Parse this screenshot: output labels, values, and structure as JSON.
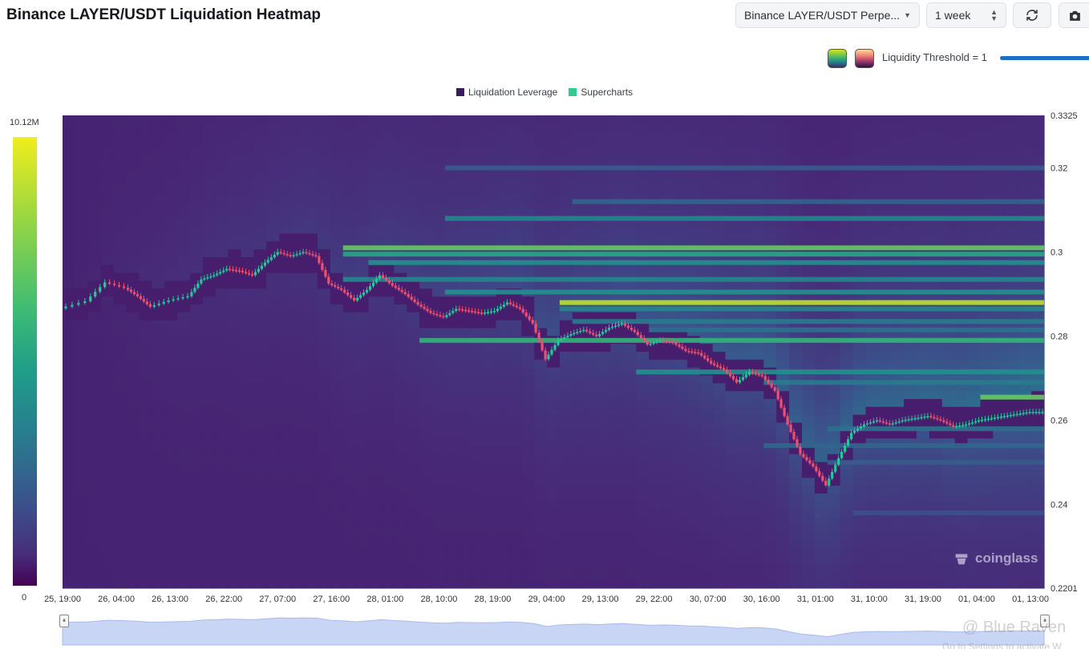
{
  "header": {
    "title": "Binance LAYER/USDT Liquidation Heatmap",
    "pair_select": "Binance LAYER/USDT Perpe...",
    "period_select": "1 week"
  },
  "controls": {
    "threshold_label": "Liquidity Threshold = 1",
    "threshold_value": 1,
    "refresh_icon": "refresh-icon",
    "camera_icon": "camera-icon"
  },
  "colorbar": {
    "max_label": "10.12M",
    "min_label": "0"
  },
  "brand": {
    "text": "coinglass"
  },
  "watermark": {
    "text": "@ Blue Raven",
    "sub": "Go to Settings to activate W"
  },
  "chart_data": {
    "type": "heatmap",
    "legend": [
      {
        "name": "Liquidation Leverage",
        "color": "#3b1b5e"
      },
      {
        "name": "Supercharts",
        "color": "#2ecc8f"
      }
    ],
    "x_ticks": [
      "25, 19:00",
      "26, 04:00",
      "26, 13:00",
      "26, 22:00",
      "27, 07:00",
      "27, 16:00",
      "28, 01:00",
      "28, 10:00",
      "28, 19:00",
      "29, 04:00",
      "29, 13:00",
      "29, 22:00",
      "30, 07:00",
      "30, 16:00",
      "31, 01:00",
      "31, 10:00",
      "31, 19:00",
      "01, 04:00",
      "01, 13:00"
    ],
    "y_ticks": [
      "0.3325",
      "0.32",
      "0.3",
      "0.28",
      "0.26",
      "0.24",
      "0.2201"
    ],
    "ylim": [
      0.2201,
      0.3325
    ],
    "colorscale_max": 10120000,
    "price_path": [
      [
        0,
        0.2866
      ],
      [
        2,
        0.2883
      ],
      [
        3.5,
        0.2928
      ],
      [
        5,
        0.2915
      ],
      [
        6,
        0.2895
      ],
      [
        7,
        0.287
      ],
      [
        8.5,
        0.2885
      ],
      [
        10,
        0.2895
      ],
      [
        11,
        0.2935
      ],
      [
        12,
        0.2945
      ],
      [
        13,
        0.296
      ],
      [
        14,
        0.2955
      ],
      [
        15,
        0.2945
      ],
      [
        16,
        0.2975
      ],
      [
        17,
        0.3
      ],
      [
        18,
        0.299
      ],
      [
        19,
        0.3
      ],
      [
        20,
        0.299
      ],
      [
        21,
        0.2925
      ],
      [
        22,
        0.291
      ],
      [
        23,
        0.2885
      ],
      [
        24,
        0.291
      ],
      [
        25,
        0.2945
      ],
      [
        26,
        0.292
      ],
      [
        27,
        0.29
      ],
      [
        28,
        0.2875
      ],
      [
        29,
        0.2855
      ],
      [
        30,
        0.2845
      ],
      [
        31,
        0.2865
      ],
      [
        32,
        0.286
      ],
      [
        33,
        0.2855
      ],
      [
        34,
        0.286
      ],
      [
        35,
        0.288
      ],
      [
        36,
        0.2865
      ],
      [
        37,
        0.283
      ],
      [
        38,
        0.2745
      ],
      [
        39,
        0.279
      ],
      [
        40,
        0.2805
      ],
      [
        41,
        0.2815
      ],
      [
        42,
        0.28
      ],
      [
        43,
        0.282
      ],
      [
        44,
        0.283
      ],
      [
        45,
        0.281
      ],
      [
        46,
        0.278
      ],
      [
        47,
        0.279
      ],
      [
        48,
        0.2785
      ],
      [
        49,
        0.2765
      ],
      [
        50,
        0.276
      ],
      [
        51,
        0.2735
      ],
      [
        52,
        0.272
      ],
      [
        53,
        0.269
      ],
      [
        54,
        0.2715
      ],
      [
        55,
        0.2705
      ],
      [
        56,
        0.267
      ],
      [
        57,
        0.259
      ],
      [
        58,
        0.252
      ],
      [
        59,
        0.249
      ],
      [
        60,
        0.2445
      ],
      [
        61,
        0.251
      ],
      [
        62,
        0.257
      ],
      [
        63,
        0.259
      ],
      [
        64,
        0.26
      ],
      [
        65,
        0.259
      ],
      [
        66,
        0.26
      ],
      [
        67,
        0.2605
      ],
      [
        68,
        0.261
      ],
      [
        69,
        0.26
      ],
      [
        70,
        0.2585
      ],
      [
        71,
        0.259
      ],
      [
        72,
        0.26
      ],
      [
        73,
        0.2605
      ],
      [
        74,
        0.261
      ],
      [
        75,
        0.2615
      ],
      [
        76,
        0.262
      ],
      [
        77,
        0.262
      ]
    ],
    "liquidation_levels": [
      {
        "price": 0.301,
        "intensity": 0.85,
        "from": 22
      },
      {
        "price": 0.2995,
        "intensity": 0.7,
        "from": 22
      },
      {
        "price": 0.2975,
        "intensity": 0.6,
        "from": 24
      },
      {
        "price": 0.2935,
        "intensity": 0.55,
        "from": 22
      },
      {
        "price": 0.2905,
        "intensity": 0.6,
        "from": 30
      },
      {
        "price": 0.288,
        "intensity": 0.95,
        "from": 39
      },
      {
        "price": 0.2865,
        "intensity": 0.55,
        "from": 39
      },
      {
        "price": 0.2835,
        "intensity": 0.5,
        "from": 40
      },
      {
        "price": 0.2815,
        "intensity": 0.45,
        "from": 46
      },
      {
        "price": 0.279,
        "intensity": 0.75,
        "from": 28
      },
      {
        "price": 0.2715,
        "intensity": 0.6,
        "from": 45
      },
      {
        "price": 0.269,
        "intensity": 0.5,
        "from": 55
      },
      {
        "price": 0.2655,
        "intensity": 0.85,
        "from": 72
      },
      {
        "price": 0.258,
        "intensity": 0.45,
        "from": 60
      },
      {
        "price": 0.254,
        "intensity": 0.4,
        "from": 55
      },
      {
        "price": 0.25,
        "intensity": 0.35,
        "from": 60
      },
      {
        "price": 0.238,
        "intensity": 0.3,
        "from": 62
      },
      {
        "price": 0.308,
        "intensity": 0.55,
        "from": 30
      },
      {
        "price": 0.312,
        "intensity": 0.4,
        "from": 40
      },
      {
        "price": 0.32,
        "intensity": 0.35,
        "from": 30
      }
    ]
  }
}
